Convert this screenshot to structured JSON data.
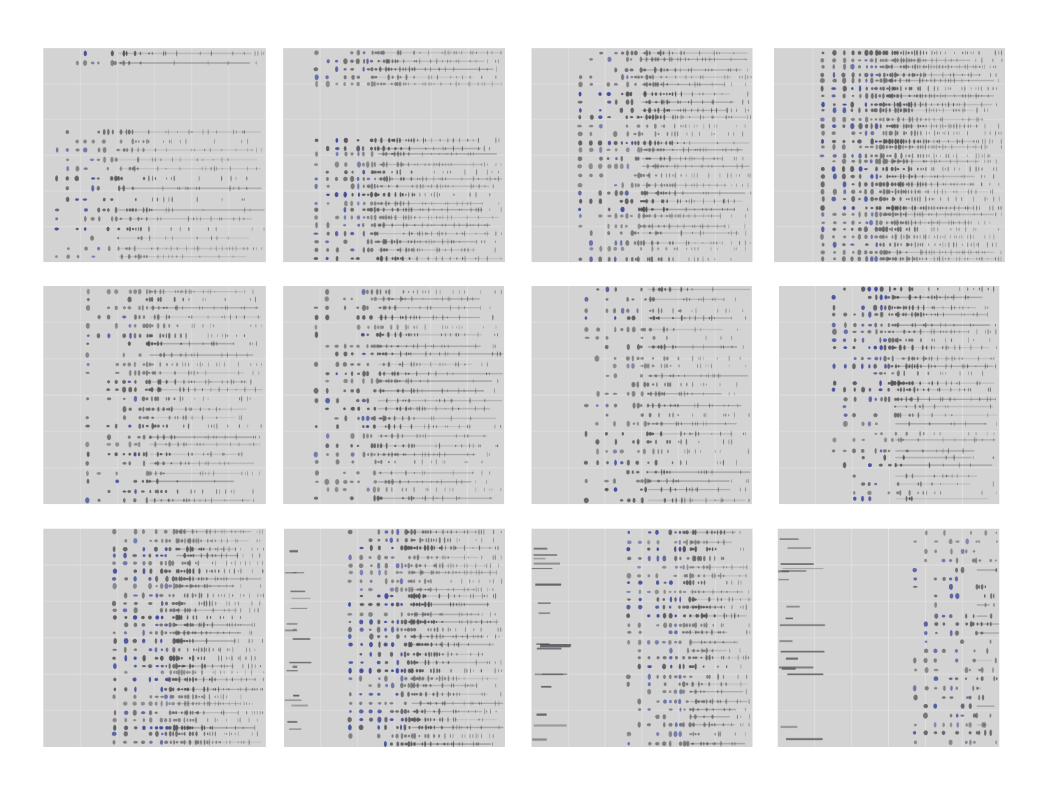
{
  "figure": {
    "panel_count": 12,
    "rows": 3,
    "columns": 4,
    "colors": {
      "page_background": "#ffffff",
      "panel_background": "#d3d3d3",
      "gridline": "#e2e2e2",
      "dark_mark": "#3e3e44",
      "blue_mark": "#1f2d8f"
    },
    "panels": [
      {
        "row": 1,
        "col": 1
      },
      {
        "row": 1,
        "col": 2
      },
      {
        "row": 1,
        "col": 3
      },
      {
        "row": 1,
        "col": 4
      },
      {
        "row": 2,
        "col": 1
      },
      {
        "row": 2,
        "col": 2
      },
      {
        "row": 2,
        "col": 3
      },
      {
        "row": 2,
        "col": 4
      },
      {
        "row": 3,
        "col": 1
      },
      {
        "row": 3,
        "col": 2
      },
      {
        "row": 3,
        "col": 3
      },
      {
        "row": 3,
        "col": 4
      }
    ]
  }
}
